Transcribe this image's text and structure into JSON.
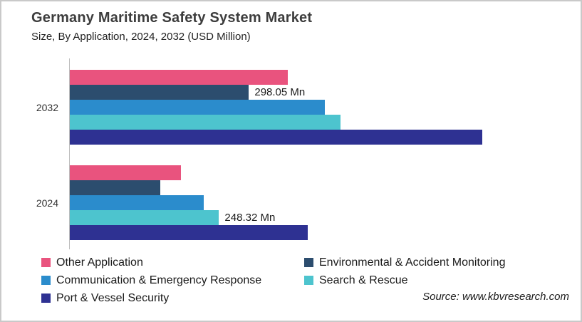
{
  "header": {
    "title": "Germany Maritime Safety System Market",
    "subtitle": "Size, By Application, 2024, 2032 (USD Million)"
  },
  "chart_data": {
    "type": "bar",
    "orientation": "horizontal",
    "unit": "USD Million",
    "groups": [
      "2032",
      "2024"
    ],
    "series": [
      {
        "name": "Other Application",
        "color": "#E9537E",
        "values": [
          363,
          185
        ]
      },
      {
        "name": "Environmental & Accident Monitoring",
        "color": "#2C4D6E",
        "values": [
          298.05,
          151
        ]
      },
      {
        "name": "Communication & Emergency Response",
        "color": "#2B8CCC",
        "values": [
          425,
          223
        ]
      },
      {
        "name": "Search & Rescue",
        "color": "#4DC4CE",
        "values": [
          451,
          248.32
        ]
      },
      {
        "name": "Port & Vessel Security",
        "color": "#2E3192",
        "values": [
          687,
          396
        ]
      }
    ],
    "data_labels": [
      {
        "group": "2032",
        "series": "Environmental & Accident Monitoring",
        "text": "298.05 Mn"
      },
      {
        "group": "2024",
        "series": "Search & Rescue",
        "text": "248.32 Mn"
      }
    ],
    "x_axis": {
      "min": 0,
      "max": 830,
      "ticks_visible": false,
      "gridlines": false
    },
    "y_axis": {
      "line_color": "#BDBDBD"
    },
    "legend_position": "bottom"
  },
  "source": {
    "text": "Source: www.kbvresearch.com"
  }
}
